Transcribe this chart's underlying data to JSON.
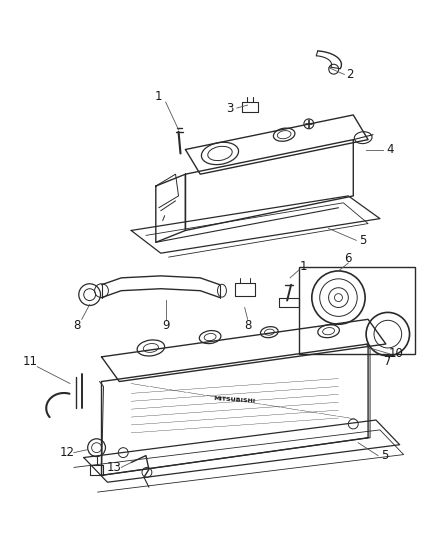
{
  "bg_color": "#ffffff",
  "line_color": "#2a2a2a",
  "label_color": "#1a1a1a",
  "font_size": 8.5,
  "figsize": [
    4.38,
    5.33
  ],
  "dpi": 100
}
